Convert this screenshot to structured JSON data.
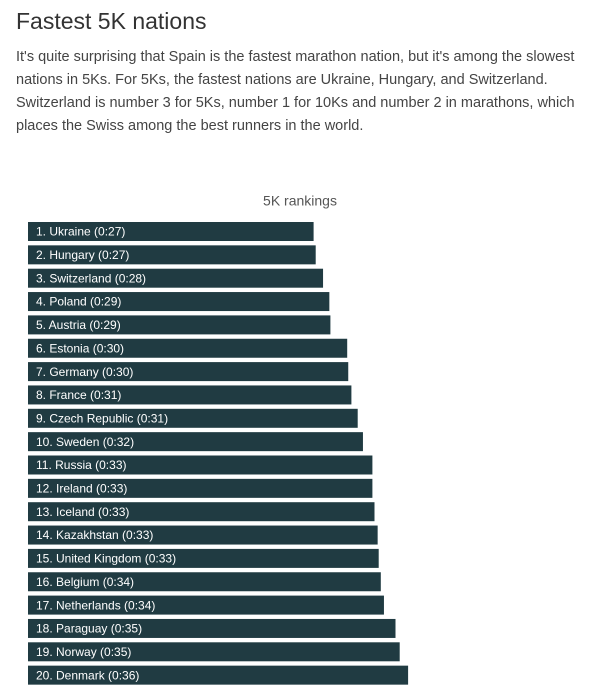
{
  "header": {
    "title": "Fastest 5K nations",
    "text": "It's quite surprising that Spain is the fastest marathon nation, but it's among the slowest nations in 5Ks. For 5Ks, the fastest nations are Ukraine, Hungary, and Switzerland. Switzerland is number 3 for 5Ks, number 1 for 10Ks and number 2 in marathons, which places the Swiss among the best runners in the world."
  },
  "chart_data": {
    "type": "bar",
    "orientation": "horizontal",
    "title": "5K rankings",
    "color": "#203b42",
    "categories": [
      "1. Ukraine (0:27)",
      "2. Hungary (0:27)",
      "3. Switzerland (0:28)",
      "4. Poland (0:29)",
      "5. Austria (0:29)",
      "6. Estonia (0:30)",
      "7. Germany (0:30)",
      "8. France (0:31)",
      "9. Czech Republic (0:31)",
      "10. Sweden (0:32)",
      "11. Russia (0:33)",
      "12. Ireland (0:33)",
      "13. Iceland (0:33)",
      "14. Kazakhstan (0:33)",
      "15. United Kingdom (0:33)",
      "16. Belgium (0:34)",
      "17. Netherlands (0:34)",
      "18. Paraguay (0:35)",
      "19. Norway (0:35)",
      "20. Denmark (0:36)"
    ],
    "values": [
      27.2,
      27.4,
      28.1,
      28.7,
      28.8,
      30.4,
      30.5,
      30.8,
      31.4,
      31.9,
      32.8,
      32.8,
      33.0,
      33.3,
      33.4,
      33.6,
      33.9,
      35.0,
      35.4,
      36.2
    ]
  }
}
